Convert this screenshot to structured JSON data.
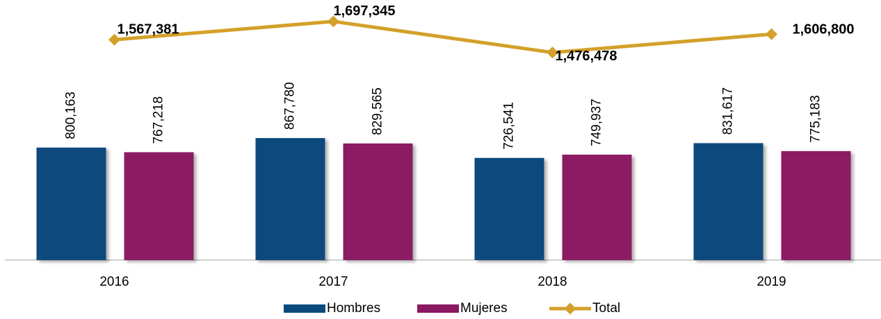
{
  "chart_data": {
    "type": "bar",
    "categories": [
      "2016",
      "2017",
      "2018",
      "2019"
    ],
    "ylim": [
      0,
      1850000
    ],
    "series": [
      {
        "name": "Hombres",
        "type": "bar",
        "color": "#0b4a7d",
        "values": [
          800163,
          867780,
          726541,
          831617
        ],
        "value_labels": [
          "800,163",
          "867,780",
          "726,541",
          "831,617"
        ]
      },
      {
        "name": "Mujeres",
        "type": "bar",
        "color": "#8b1a63",
        "values": [
          767218,
          829565,
          749937,
          775183
        ],
        "value_labels": [
          "767,218",
          "829,565",
          "749,937",
          "775,183"
        ]
      },
      {
        "name": "Total",
        "type": "line",
        "color": "#d4a02a",
        "values": [
          1567381,
          1697345,
          1476478,
          1606800
        ],
        "value_labels": [
          "1,567,381",
          "1,697,345",
          "1,476,478",
          "1,606,800"
        ]
      }
    ],
    "legend": "bottom"
  }
}
